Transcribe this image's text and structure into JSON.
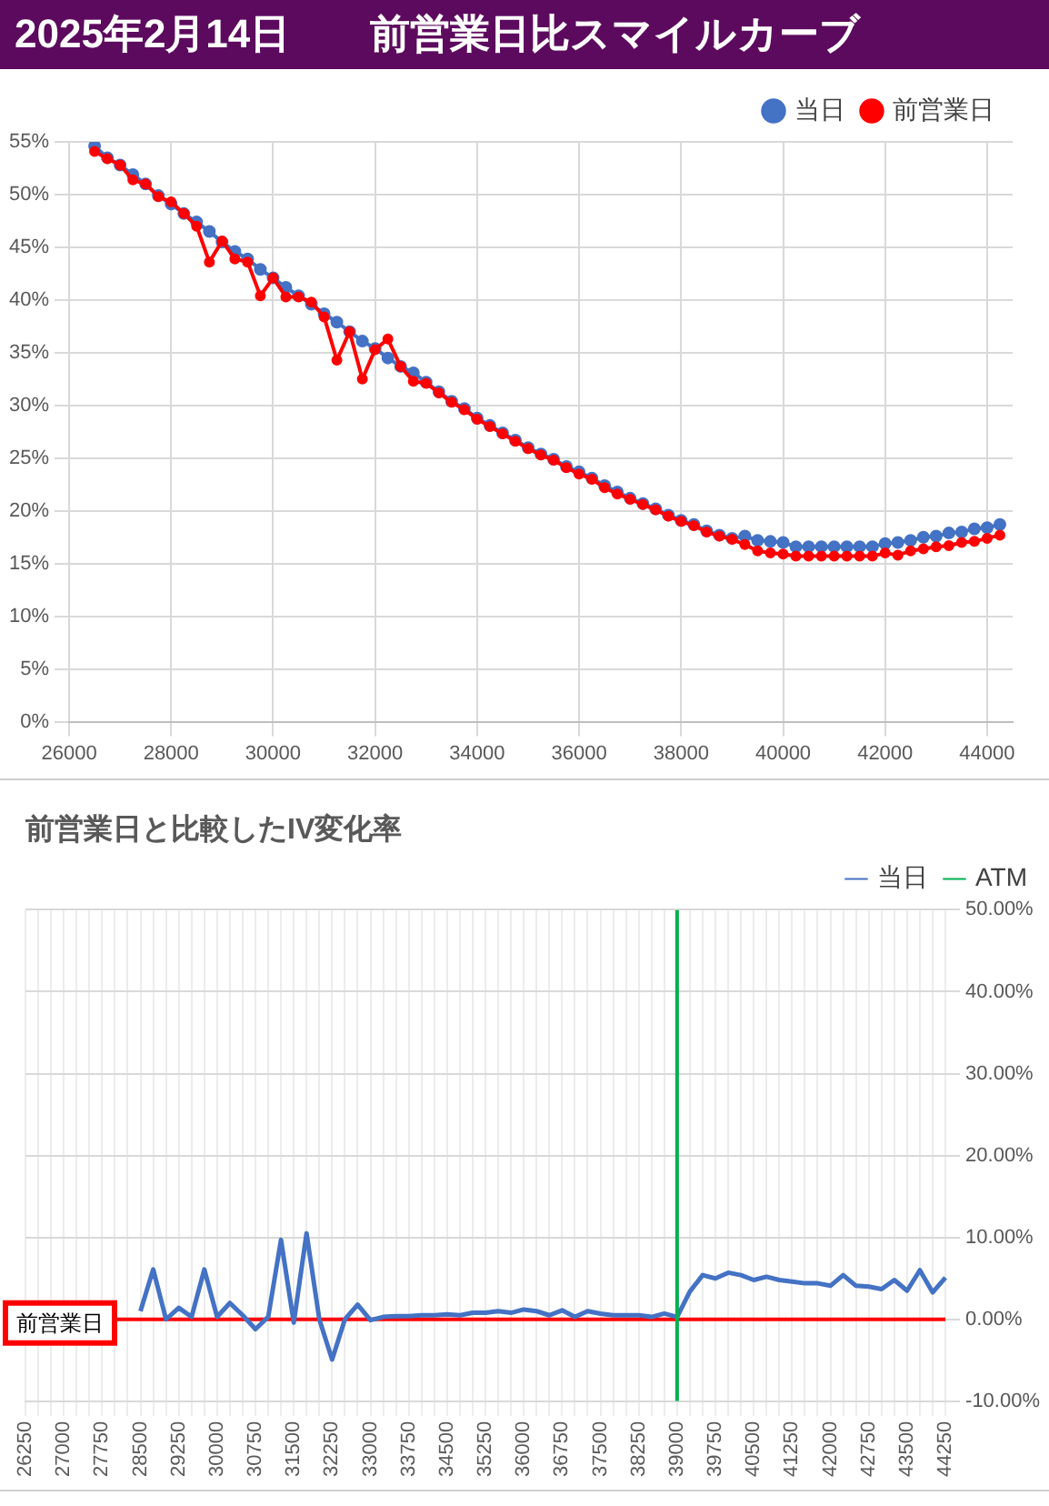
{
  "chart_data": [
    {
      "type": "line",
      "title": "2025年2月14日　　前営業日比スマイルカーブ",
      "x": [
        26500,
        26750,
        27000,
        27250,
        27500,
        27750,
        28000,
        28250,
        28500,
        28750,
        29000,
        29250,
        29500,
        29750,
        30000,
        30250,
        30500,
        30750,
        31000,
        31250,
        31500,
        31750,
        32000,
        32250,
        32500,
        32750,
        33000,
        33250,
        33500,
        33750,
        34000,
        34250,
        34500,
        34750,
        35000,
        35250,
        35500,
        35750,
        36000,
        36250,
        36500,
        36750,
        37000,
        37250,
        37500,
        37750,
        38000,
        38250,
        38500,
        38750,
        39000,
        39250,
        39500,
        39750,
        40000,
        40250,
        40500,
        40750,
        41000,
        41250,
        41500,
        41750,
        42000,
        42250,
        42500,
        42750,
        43000,
        43250,
        43500,
        43750,
        44000,
        44250
      ],
      "series": [
        {
          "name": "当日",
          "color": "#4472c4",
          "values": [
            54.6,
            53.5,
            52.8,
            51.9,
            51.0,
            49.9,
            49.1,
            48.2,
            47.4,
            46.5,
            45.5,
            44.6,
            43.9,
            42.9,
            42.1,
            41.2,
            40.4,
            39.6,
            38.7,
            37.9,
            37.0,
            36.1,
            35.4,
            34.5,
            33.7,
            33.1,
            32.2,
            31.3,
            30.4,
            29.7,
            28.8,
            28.1,
            27.4,
            26.7,
            26.0,
            25.4,
            24.9,
            24.2,
            23.7,
            23.1,
            22.4,
            21.8,
            21.2,
            20.7,
            20.2,
            19.6,
            19.1,
            18.7,
            18.1,
            17.7,
            17.4,
            17.6,
            17.2,
            17.1,
            17.0,
            16.6,
            16.6,
            16.6,
            16.6,
            16.6,
            16.6,
            16.6,
            16.9,
            17.0,
            17.2,
            17.5,
            17.6,
            17.9,
            18.0,
            18.3,
            18.4,
            18.7
          ]
        },
        {
          "name": "前営業日",
          "color": "#ff0000",
          "values": [
            54.1,
            53.4,
            52.8,
            51.4,
            51.0,
            49.8,
            49.3,
            48.2,
            47.0,
            43.6,
            45.6,
            43.9,
            43.6,
            40.4,
            42.1,
            40.3,
            40.3,
            39.8,
            38.4,
            34.3,
            37.0,
            32.5,
            35.3,
            36.3,
            33.7,
            32.3,
            32.1,
            31.2,
            30.3,
            29.6,
            28.7,
            28.0,
            27.3,
            26.6,
            25.9,
            25.3,
            24.8,
            24.1,
            23.5,
            23.0,
            22.2,
            21.6,
            21.1,
            20.6,
            20.1,
            19.5,
            19.0,
            18.6,
            18.0,
            17.6,
            17.3,
            16.8,
            16.2,
            16.0,
            15.9,
            15.7,
            15.7,
            15.7,
            15.7,
            15.7,
            15.7,
            15.7,
            16.0,
            15.8,
            16.2,
            16.4,
            16.6,
            16.7,
            17.0,
            17.1,
            17.4,
            17.7
          ]
        }
      ],
      "xlim": [
        26000,
        44500
      ],
      "xticks": [
        26000,
        28000,
        30000,
        32000,
        34000,
        36000,
        38000,
        40000,
        42000,
        44000
      ],
      "ylim": [
        0,
        55
      ],
      "yticks": [
        {
          "value": 0,
          "label": "0%"
        },
        {
          "value": 5,
          "label": "5%"
        },
        {
          "value": 10,
          "label": "10%"
        },
        {
          "value": 15,
          "label": "15%"
        },
        {
          "value": 20,
          "label": "20%"
        },
        {
          "value": 25,
          "label": "25%"
        },
        {
          "value": 30,
          "label": "30%"
        },
        {
          "value": 35,
          "label": "35%"
        },
        {
          "value": 40,
          "label": "40%"
        },
        {
          "value": 45,
          "label": "45%"
        },
        {
          "value": 50,
          "label": "50%"
        },
        {
          "value": 55,
          "label": "55%"
        }
      ],
      "grid": true,
      "legend": "top right",
      "marker": "circle"
    },
    {
      "type": "line",
      "title": "前営業日と比較したIV変化率",
      "categories": [
        "26250",
        null,
        null,
        "27000",
        null,
        null,
        "27750",
        null,
        null,
        "28500",
        null,
        null,
        "29250",
        null,
        null,
        "30000",
        null,
        null,
        "30750",
        null,
        null,
        "31500",
        null,
        null,
        "32250",
        null,
        null,
        "33000",
        null,
        null,
        "33750",
        null,
        null,
        "34500",
        null,
        null,
        "35250",
        null,
        null,
        "36000",
        null,
        null,
        "36750",
        null,
        null,
        "37500",
        null,
        null,
        "38250",
        null,
        null,
        "39000",
        null,
        null,
        "39750",
        null,
        null,
        "40500",
        null,
        null,
        "41250",
        null,
        null,
        "42000",
        null,
        null,
        "42750",
        null,
        null,
        "43500",
        null,
        null,
        "44250"
      ],
      "series": [
        {
          "name": "当日",
          "color": "#4472c4",
          "axis": "y2",
          "values": [
            null,
            null,
            null,
            null,
            null,
            null,
            null,
            null,
            null,
            1.0,
            6.1,
            0.0,
            1.4,
            0.3,
            6.1,
            0.3,
            2.0,
            0.5,
            -1.2,
            0.3,
            9.7,
            -0.4,
            10.5,
            0.0,
            -4.9,
            0.0,
            1.8,
            -0.1,
            0.3,
            0.4,
            0.4,
            0.5,
            0.5,
            0.6,
            0.5,
            0.8,
            0.8,
            1.0,
            0.8,
            1.2,
            1.0,
            0.5,
            1.1,
            0.3,
            1.0,
            0.7,
            0.5,
            0.5,
            0.5,
            0.3,
            0.7,
            0.3,
            3.4,
            5.4,
            5.0,
            5.7,
            5.4,
            4.8,
            5.2,
            4.8,
            4.6,
            4.4,
            4.4,
            4.1,
            5.4,
            4.1,
            4.0,
            3.7,
            4.8,
            3.5,
            6.0,
            3.3,
            5.1
          ]
        },
        {
          "name": "ATM",
          "color": "#00b050",
          "axis": "y2",
          "x": [
            "39000",
            "39000"
          ],
          "values": [
            -10,
            50
          ]
        }
      ],
      "y2lim": [
        -10,
        50
      ],
      "y2ticks": [
        {
          "value": -10,
          "label": "-10.00%"
        },
        {
          "value": 0,
          "label": "0.00%"
        },
        {
          "value": 10,
          "label": "10.00%"
        },
        {
          "value": 20,
          "label": "20.00%"
        },
        {
          "value": 30,
          "label": "30.00%"
        },
        {
          "value": 40,
          "label": "40.00%"
        },
        {
          "value": 50,
          "label": "50.00%"
        }
      ],
      "ref_lines": [
        {
          "axis": "y2",
          "value": 0,
          "label": "前営業日",
          "color": "#ff0000"
        }
      ],
      "grid": true,
      "legend": "top right",
      "marker": "none"
    }
  ]
}
